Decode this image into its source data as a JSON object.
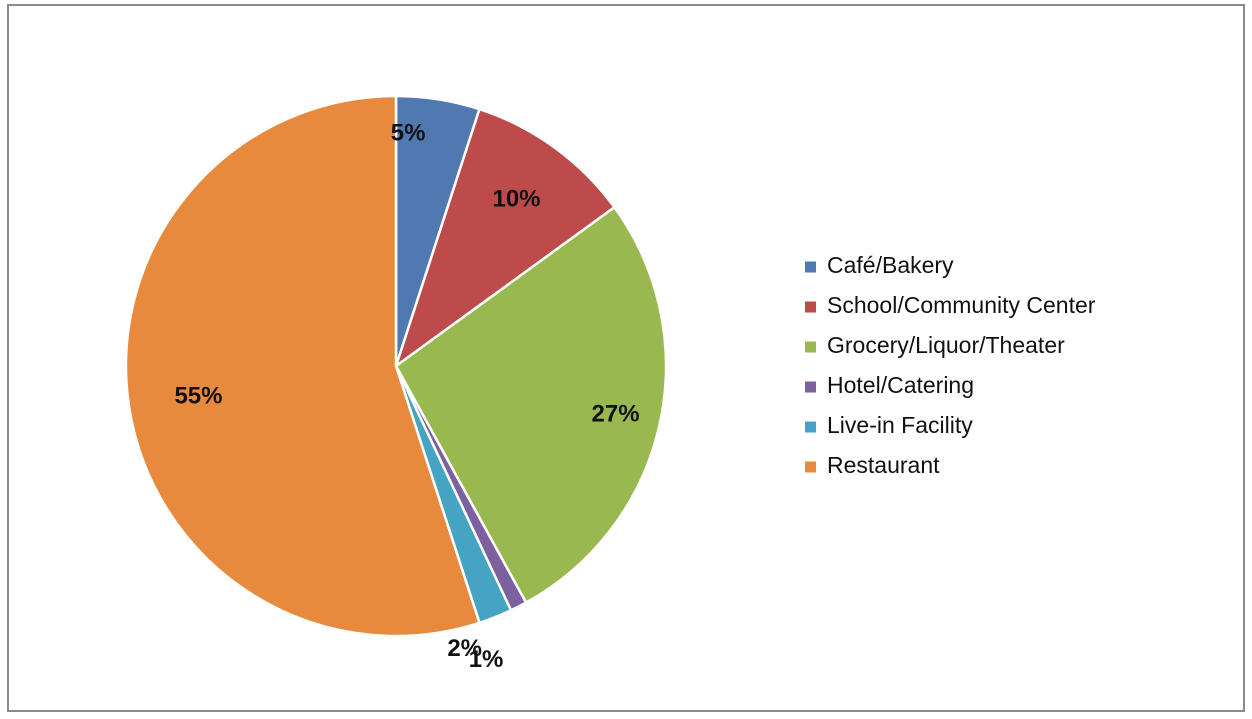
{
  "chart_data": {
    "type": "pie",
    "categories": [
      "Café/Bakery",
      "School/Community Center",
      "Grocery/Liquor/Theater",
      "Hotel/Catering",
      "Live-in Facility",
      "Restaurant"
    ],
    "values": [
      5,
      10,
      27,
      1,
      2,
      55
    ],
    "data_labels": [
      "5%",
      "10%",
      "27%",
      "1%",
      "2%",
      "55%"
    ],
    "colors": [
      "#4f79b0",
      "#bd4b4c",
      "#99b84f",
      "#7d619e",
      "#46a4c3",
      "#e88a3e"
    ],
    "legend_position": "right",
    "start_angle": "12 o'clock, clockwise"
  }
}
